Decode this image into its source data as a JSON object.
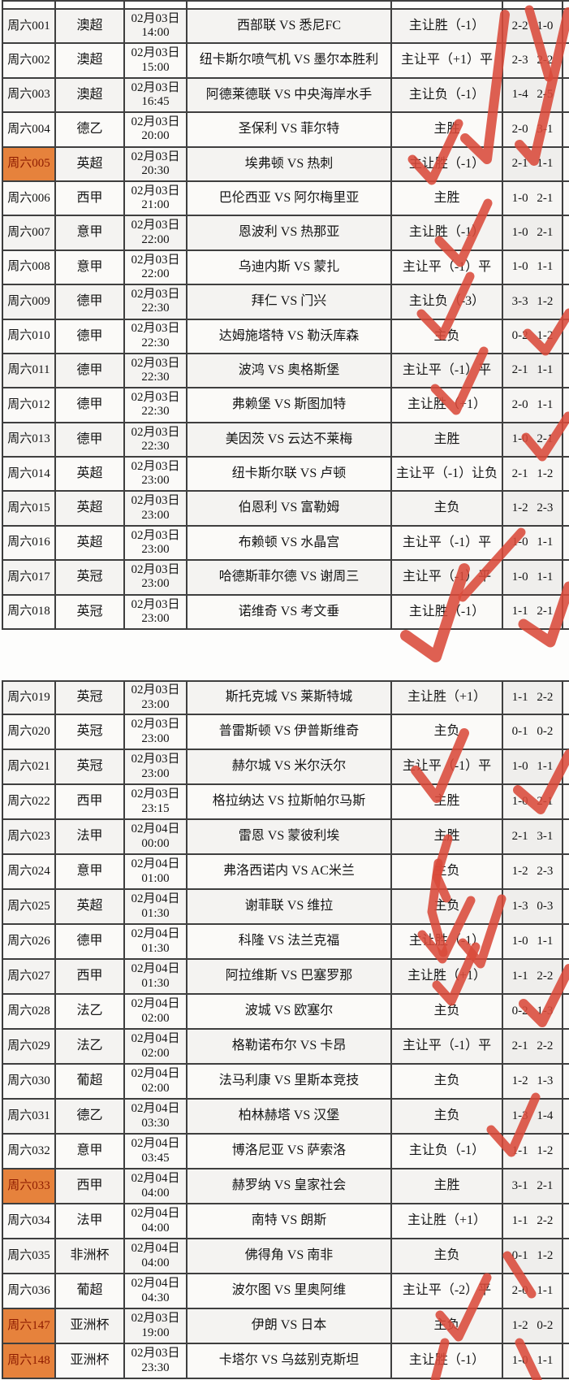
{
  "colors": {
    "pen_red": "#d94a3a",
    "highlight_orange": "#e6823c",
    "highlight_text": "#8d1b00",
    "grid_line": "#3f3f3f",
    "cell_bg": "#f4f3f1"
  },
  "tables": [
    {
      "rows": [
        {
          "id": "周六001",
          "league": "澳超",
          "date": "02月03日",
          "time": "14:00",
          "matchup": "西部联 VS 悉尼FC",
          "prediction": "主让胜（-1）",
          "score": "2-2 1-0",
          "highlight": false
        },
        {
          "id": "周六002",
          "league": "澳超",
          "date": "02月03日",
          "time": "15:00",
          "matchup": "纽卡斯尔喷气机 VS 墨尔本胜利",
          "prediction": "主让平（+1）平",
          "score": "2-3 2-2",
          "highlight": false
        },
        {
          "id": "周六003",
          "league": "澳超",
          "date": "02月03日",
          "time": "16:45",
          "matchup": "阿德莱德联 VS 中央海岸水手",
          "prediction": "主让负（-1）",
          "score": "1-4 2-5",
          "highlight": false
        },
        {
          "id": "周六004",
          "league": "德乙",
          "date": "02月03日",
          "time": "20:00",
          "matchup": "圣保利 VS 菲尔特",
          "prediction": "主胜",
          "score": "2-0 3-1",
          "highlight": false
        },
        {
          "id": "周六005",
          "league": "英超",
          "date": "02月03日",
          "time": "20:30",
          "matchup": "埃弗顿 VS 热刺",
          "prediction": "主让胜（-1）",
          "score": "2-1 1-1",
          "highlight": true
        },
        {
          "id": "周六006",
          "league": "西甲",
          "date": "02月03日",
          "time": "21:00",
          "matchup": "巴伦西亚 VS 阿尔梅里亚",
          "prediction": "主胜",
          "score": "1-0 2-1",
          "highlight": false
        },
        {
          "id": "周六007",
          "league": "意甲",
          "date": "02月03日",
          "time": "22:00",
          "matchup": "恩波利 VS 热那亚",
          "prediction": "主让胜（-1）",
          "score": "1-0 2-1",
          "highlight": false
        },
        {
          "id": "周六008",
          "league": "意甲",
          "date": "02月03日",
          "time": "22:00",
          "matchup": "乌迪内斯 VS 蒙扎",
          "prediction": "主让平（-1）平",
          "score": "1-0 1-1",
          "highlight": false
        },
        {
          "id": "周六009",
          "league": "德甲",
          "date": "02月03日",
          "time": "22:30",
          "matchup": "拜仁 VS 门兴",
          "prediction": "主让负（-3）",
          "score": "3-3 1-2",
          "highlight": false
        },
        {
          "id": "周六010",
          "league": "德甲",
          "date": "02月03日",
          "time": "22:30",
          "matchup": "达姆施塔特 VS 勒沃库森",
          "prediction": "主负",
          "score": "0-2 1-2",
          "highlight": false
        },
        {
          "id": "周六011",
          "league": "德甲",
          "date": "02月03日",
          "time": "22:30",
          "matchup": "波鸿 VS 奥格斯堡",
          "prediction": "主让平（-1）平",
          "score": "2-1 1-1",
          "highlight": false
        },
        {
          "id": "周六012",
          "league": "德甲",
          "date": "02月03日",
          "time": "22:30",
          "matchup": "弗赖堡 VS 斯图加特",
          "prediction": "主让胜（+1）",
          "score": "2-0 1-1",
          "highlight": false
        },
        {
          "id": "周六013",
          "league": "德甲",
          "date": "02月03日",
          "time": "22:30",
          "matchup": "美因茨 VS 云达不莱梅",
          "prediction": "主胜",
          "score": "1-0 2-1",
          "highlight": false
        },
        {
          "id": "周六014",
          "league": "英超",
          "date": "02月03日",
          "time": "23:00",
          "matchup": "纽卡斯尔联 VS 卢顿",
          "prediction": "主让平（-1）让负",
          "score": "2-1 1-2",
          "highlight": false
        },
        {
          "id": "周六015",
          "league": "英超",
          "date": "02月03日",
          "time": "23:00",
          "matchup": "伯恩利 VS 富勒姆",
          "prediction": "主负",
          "score": "1-2 2-3",
          "highlight": false
        },
        {
          "id": "周六016",
          "league": "英超",
          "date": "02月03日",
          "time": "23:00",
          "matchup": "布赖顿 VS 水晶宫",
          "prediction": "主让平（-1）平",
          "score": "1-0 1-1",
          "highlight": false
        },
        {
          "id": "周六017",
          "league": "英冠",
          "date": "02月03日",
          "time": "23:00",
          "matchup": "哈德斯菲尔德 VS 谢周三",
          "prediction": "主让平（-1）平",
          "score": "1-0 1-1",
          "highlight": false
        },
        {
          "id": "周六018",
          "league": "英冠",
          "date": "02月03日",
          "time": "23:00",
          "matchup": "诺维奇 VS 考文垂",
          "prediction": "主让胜（-1）",
          "score": "1-1 2-1",
          "highlight": false
        }
      ]
    },
    {
      "rows": [
        {
          "id": "周六019",
          "league": "英冠",
          "date": "02月03日",
          "time": "23:00",
          "matchup": "斯托克城 VS 莱斯特城",
          "prediction": "主让胜（+1）",
          "score": "1-1 2-2",
          "highlight": false
        },
        {
          "id": "周六020",
          "league": "英冠",
          "date": "02月03日",
          "time": "23:00",
          "matchup": "普雷斯顿 VS 伊普斯维奇",
          "prediction": "主负",
          "score": "0-1 0-2",
          "highlight": false
        },
        {
          "id": "周六021",
          "league": "英冠",
          "date": "02月03日",
          "time": "23:00",
          "matchup": "赫尔城 VS 米尔沃尔",
          "prediction": "主让平（-1）平",
          "score": "1-0 1-1",
          "highlight": false
        },
        {
          "id": "周六022",
          "league": "西甲",
          "date": "02月03日",
          "time": "23:15",
          "matchup": "格拉纳达 VS 拉斯帕尔马斯",
          "prediction": "主胜",
          "score": "1-0 2-1",
          "highlight": false
        },
        {
          "id": "周六023",
          "league": "法甲",
          "date": "02月04日",
          "time": "00:00",
          "matchup": "雷恩 VS 蒙彼利埃",
          "prediction": "主胜",
          "score": "2-1 3-1",
          "highlight": false
        },
        {
          "id": "周六024",
          "league": "意甲",
          "date": "02月04日",
          "time": "01:00",
          "matchup": "弗洛西诺内 VS AC米兰",
          "prediction": "主负",
          "score": "1-2 2-3",
          "highlight": false
        },
        {
          "id": "周六025",
          "league": "英超",
          "date": "02月04日",
          "time": "01:30",
          "matchup": "谢菲联 VS 维拉",
          "prediction": "主负",
          "score": "1-3 0-3",
          "highlight": false
        },
        {
          "id": "周六026",
          "league": "德甲",
          "date": "02月04日",
          "time": "01:30",
          "matchup": "科隆 VS 法兰克福",
          "prediction": "主让胜（-1）",
          "score": "1-0 1-1",
          "highlight": false
        },
        {
          "id": "周六027",
          "league": "西甲",
          "date": "02月04日",
          "time": "01:30",
          "matchup": "阿拉维斯 VS 巴塞罗那",
          "prediction": "主让胜（+1）",
          "score": "1-1 2-2",
          "highlight": false
        },
        {
          "id": "周六028",
          "league": "法乙",
          "date": "02月04日",
          "time": "02:00",
          "matchup": "波城 VS 欧塞尔",
          "prediction": "主负",
          "score": "0-2 1-3",
          "highlight": false
        },
        {
          "id": "周六029",
          "league": "法乙",
          "date": "02月04日",
          "time": "02:00",
          "matchup": "格勒诺布尔 VS 卡昂",
          "prediction": "主让平（-1）平",
          "score": "2-1 2-2",
          "highlight": false
        },
        {
          "id": "周六030",
          "league": "葡超",
          "date": "02月04日",
          "time": "02:00",
          "matchup": "法马利康 VS 里斯本竞技",
          "prediction": "主负",
          "score": "1-2 1-3",
          "highlight": false
        },
        {
          "id": "周六031",
          "league": "德乙",
          "date": "02月04日",
          "time": "03:30",
          "matchup": "柏林赫塔 VS 汉堡",
          "prediction": "主负",
          "score": "1-3 1-4",
          "highlight": false
        },
        {
          "id": "周六032",
          "league": "意甲",
          "date": "02月04日",
          "time": "03:45",
          "matchup": "博洛尼亚 VS 萨索洛",
          "prediction": "主让负（-1）",
          "score": "1-1 1-2",
          "highlight": false
        },
        {
          "id": "周六033",
          "league": "西甲",
          "date": "02月04日",
          "time": "04:00",
          "matchup": "赫罗纳 VS 皇家社会",
          "prediction": "主胜",
          "score": "3-1 2-1",
          "highlight": true
        },
        {
          "id": "周六034",
          "league": "法甲",
          "date": "02月04日",
          "time": "04:00",
          "matchup": "南特 VS 朗斯",
          "prediction": "主让胜（+1）",
          "score": "1-1 2-2",
          "highlight": false
        },
        {
          "id": "周六035",
          "league": "非洲杯",
          "date": "02月04日",
          "time": "04:00",
          "matchup": "佛得角 VS 南非",
          "prediction": "主负",
          "score": "0-1 1-2",
          "highlight": false
        },
        {
          "id": "周六036",
          "league": "葡超",
          "date": "02月04日",
          "time": "04:30",
          "matchup": "波尔图 VS 里奥阿维",
          "prediction": "主让平（-2）平",
          "score": "2-0 1-1",
          "highlight": false
        },
        {
          "id": "周六147",
          "league": "亚洲杯",
          "date": "02月03日",
          "time": "19:00",
          "matchup": "伊朗 VS 日本",
          "prediction": "主负",
          "score": "1-2 0-2",
          "highlight": true
        },
        {
          "id": "周六148",
          "league": "亚洲杯",
          "date": "02月03日",
          "time": "23:30",
          "matchup": "卡塔尔 VS 乌兹别克斯坦",
          "prediction": "主让胜（-1）",
          "score": "1-0 1-1",
          "highlight": true
        }
      ]
    }
  ]
}
